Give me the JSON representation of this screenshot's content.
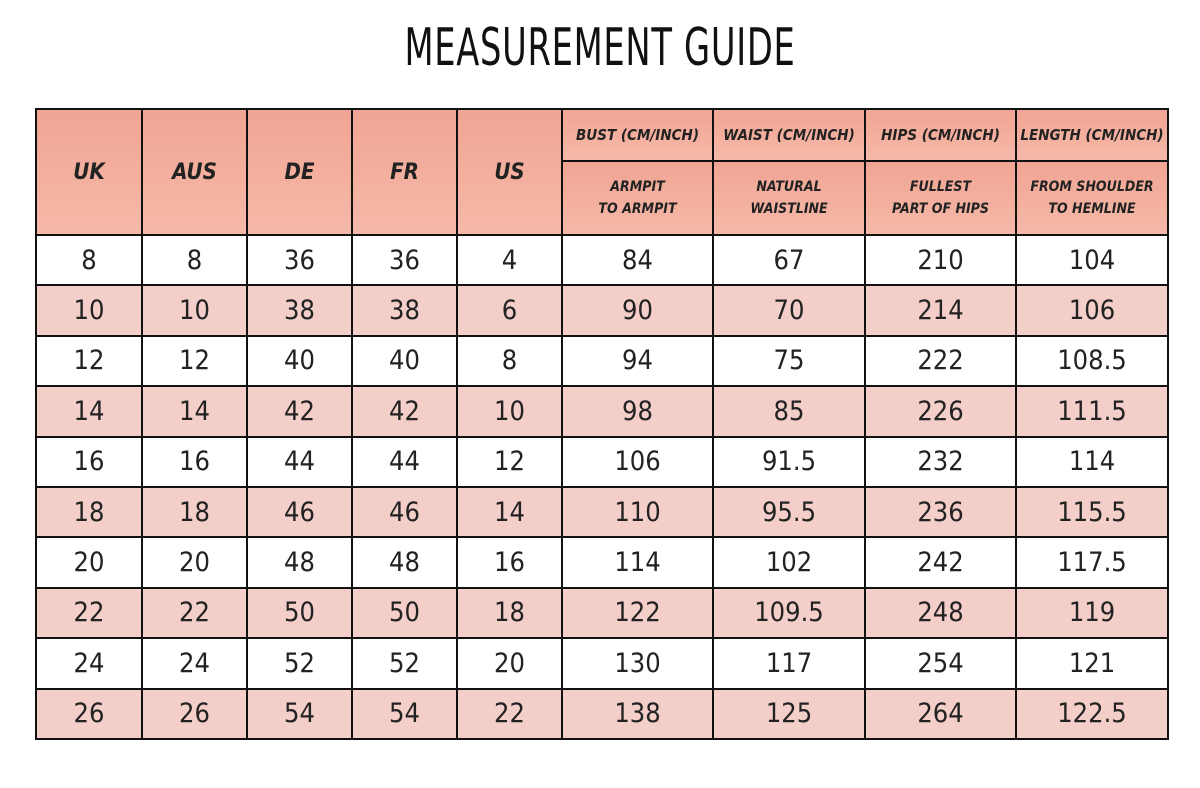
{
  "header": {
    "title": "MEASUREMENT GUIDE"
  },
  "table": {
    "size_columns": [
      "UK",
      "AUS",
      "DE",
      "FR",
      "US"
    ],
    "measure_columns": [
      {
        "name": "BUST (CM/INCH)",
        "note": "ARMPIT\nTO ARMPIT"
      },
      {
        "name": "WAIST (CM/INCH)",
        "note": "NATURAL\nWAISTLINE"
      },
      {
        "name": "HIPS (CM/INCH)",
        "note": "FULLEST\nPART OF HIPS"
      },
      {
        "name": "LENGTH (CM/INCH)",
        "note": "FROM SHOULDER\nTO HEMLINE"
      }
    ],
    "rows": [
      [
        8,
        8,
        36,
        36,
        4,
        84,
        67,
        210,
        104
      ],
      [
        10,
        10,
        38,
        38,
        6,
        90,
        70,
        214,
        106
      ],
      [
        12,
        12,
        40,
        40,
        8,
        94,
        75,
        222,
        108.5
      ],
      [
        14,
        14,
        42,
        42,
        10,
        98,
        85,
        226,
        111.5
      ],
      [
        16,
        16,
        44,
        44,
        12,
        106,
        91.5,
        232,
        114
      ],
      [
        18,
        18,
        46,
        46,
        14,
        110,
        95.5,
        236,
        115.5
      ],
      [
        20,
        20,
        48,
        48,
        16,
        114,
        102,
        242,
        117.5
      ],
      [
        22,
        22,
        50,
        50,
        18,
        122,
        109.5,
        248,
        119
      ],
      [
        24,
        24,
        52,
        52,
        20,
        130,
        117,
        254,
        121
      ],
      [
        26,
        26,
        54,
        54,
        22,
        138,
        125,
        264,
        122.5
      ]
    ]
  }
}
